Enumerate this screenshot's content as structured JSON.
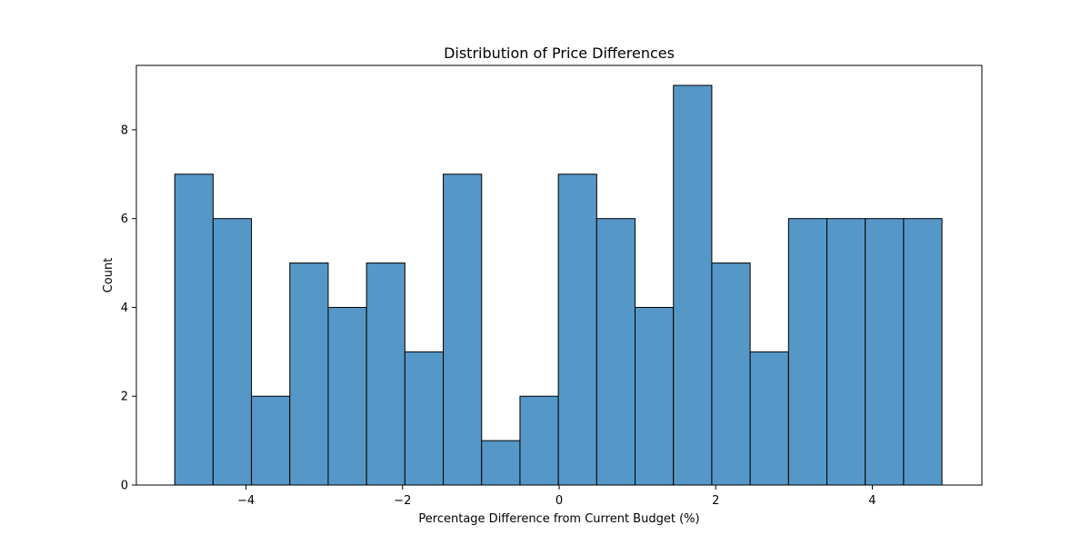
{
  "chart_data": {
    "type": "bar",
    "title": "Distribution of Price Differences",
    "xlabel": "Percentage Difference from Current Budget (%)",
    "ylabel": "Count",
    "bin_edges": [
      -4.91,
      -4.42,
      -3.93,
      -3.44,
      -2.95,
      -2.46,
      -1.97,
      -1.48,
      -0.99,
      -0.5,
      -0.01,
      0.48,
      0.97,
      1.46,
      1.95,
      2.44,
      2.93,
      3.42,
      3.91,
      4.4,
      4.89
    ],
    "values": [
      7,
      6,
      2,
      5,
      4,
      5,
      3,
      7,
      1,
      2,
      7,
      6,
      4,
      9,
      5,
      3,
      6,
      6,
      6,
      6
    ],
    "xlim": [
      -5.4,
      5.4
    ],
    "ylim": [
      0,
      9.45
    ],
    "x_ticks": [
      -4,
      -2,
      0,
      2,
      4
    ],
    "x_tick_labels": [
      "−4",
      "−2",
      "0",
      "2",
      "4"
    ],
    "y_ticks": [
      0,
      2,
      4,
      6,
      8
    ],
    "y_tick_labels": [
      "0",
      "2",
      "4",
      "6",
      "8"
    ],
    "bar_color": "#5597c7",
    "edge_color": "#000000",
    "grid": false,
    "legend": "none"
  }
}
